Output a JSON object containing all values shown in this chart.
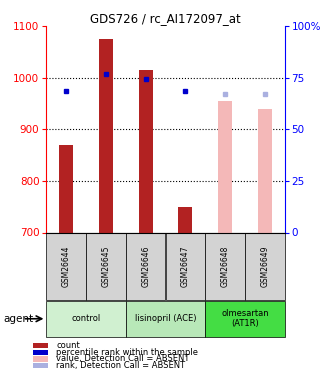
{
  "title": "GDS726 / rc_AI172097_at",
  "samples": [
    "GSM26644",
    "GSM26645",
    "GSM26646",
    "GSM26647",
    "GSM26648",
    "GSM26649"
  ],
  "bar_values": [
    870,
    1075,
    1015,
    750,
    null,
    null
  ],
  "bar_values_absent": [
    null,
    null,
    null,
    null,
    955,
    940
  ],
  "dot_values": [
    975,
    1008,
    998,
    975,
    null,
    null
  ],
  "dot_values_absent": [
    null,
    null,
    null,
    null,
    968,
    968
  ],
  "bar_color": "#b22222",
  "bar_color_absent": "#f4b8b8",
  "dot_color": "#0000cc",
  "dot_color_absent": "#aab0e0",
  "ylim_left": [
    700,
    1100
  ],
  "ylim_right": [
    0,
    100
  ],
  "yticks_left": [
    700,
    800,
    900,
    1000,
    1100
  ],
  "yticks_right": [
    0,
    25,
    50,
    75,
    100
  ],
  "right_tick_labels": [
    "0",
    "25",
    "50",
    "75",
    "100%"
  ],
  "groups": [
    {
      "label": "control",
      "samples": [
        0,
        1
      ],
      "color": "#d0f0d0"
    },
    {
      "label": "lisinopril (ACE)",
      "samples": [
        2,
        3
      ],
      "color": "#b8e8b8"
    },
    {
      "label": "olmesartan\n(AT1R)",
      "samples": [
        4,
        5
      ],
      "color": "#44dd44"
    }
  ],
  "legend": [
    {
      "label": "count",
      "color": "#b22222"
    },
    {
      "label": "percentile rank within the sample",
      "color": "#0000cc"
    },
    {
      "label": "value, Detection Call = ABSENT",
      "color": "#f4b8b8"
    },
    {
      "label": "rank, Detection Call = ABSENT",
      "color": "#aab0e0"
    }
  ],
  "bar_width": 0.35,
  "sample_cell_color": "#d3d3d3",
  "grid_color": "black"
}
